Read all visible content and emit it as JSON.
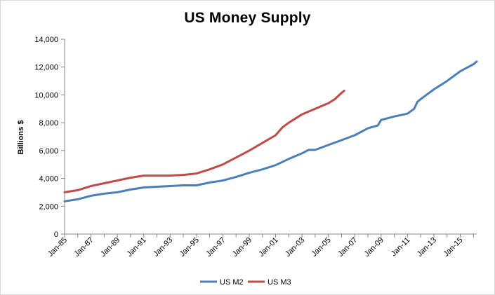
{
  "chart_data": {
    "type": "line",
    "title": "US Money Supply",
    "xlabel": "",
    "ylabel": "Billions $",
    "ylim": [
      0,
      14000
    ],
    "yticks": [
      0,
      2000,
      4000,
      6000,
      8000,
      10000,
      12000,
      14000
    ],
    "ytick_labels": [
      "0",
      "2,000",
      "4,000",
      "6,000",
      "8,000",
      "10,000",
      "12,000",
      "14,000"
    ],
    "xlim": [
      1985.0,
      2016.25
    ],
    "xticks": [
      1985,
      1987,
      1989,
      1991,
      1993,
      1995,
      1997,
      1999,
      2001,
      2003,
      2005,
      2007,
      2009,
      2011,
      2013,
      2015
    ],
    "xtick_labels": [
      "Jan-85",
      "Jan-87",
      "Jan-89",
      "Jan-91",
      "Jan-93",
      "Jan-95",
      "Jan-97",
      "Jan-99",
      "Jan-01",
      "Jan-03",
      "Jan-05",
      "Jan-07",
      "Jan-09",
      "Jan-11",
      "Jan-13",
      "Jan-15"
    ],
    "grid": false,
    "legend": "bottom",
    "series": [
      {
        "name": "US M2",
        "color": "#4a7ebb",
        "x": [
          1985.0,
          1986.0,
          1987.0,
          1988.0,
          1989.0,
          1990.0,
          1991.0,
          1992.0,
          1993.0,
          1994.0,
          1995.0,
          1996.0,
          1997.0,
          1998.0,
          1999.0,
          2000.0,
          2001.0,
          2002.0,
          2003.0,
          2003.5,
          2004.0,
          2005.0,
          2006.0,
          2007.0,
          2008.0,
          2008.75,
          2009.0,
          2010.0,
          2011.0,
          2011.5,
          2011.75,
          2012.0,
          2013.0,
          2014.0,
          2015.0,
          2016.0,
          2016.25
        ],
        "y": [
          2350,
          2500,
          2750,
          2900,
          3000,
          3200,
          3350,
          3400,
          3450,
          3500,
          3500,
          3700,
          3850,
          4100,
          4400,
          4650,
          4950,
          5400,
          5800,
          6050,
          6050,
          6400,
          6750,
          7100,
          7600,
          7800,
          8200,
          8450,
          8650,
          9000,
          9500,
          9700,
          10400,
          11000,
          11700,
          12200,
          12400
        ]
      },
      {
        "name": "US M3",
        "color": "#be4b48",
        "x": [
          1985.0,
          1986.0,
          1987.0,
          1988.0,
          1989.0,
          1990.0,
          1991.0,
          1992.0,
          1993.0,
          1994.0,
          1995.0,
          1996.0,
          1997.0,
          1998.0,
          1999.0,
          2000.0,
          2001.0,
          2001.5,
          2002.0,
          2003.0,
          2004.0,
          2005.0,
          2005.5,
          2006.0,
          2006.2
        ],
        "y": [
          3000,
          3150,
          3450,
          3650,
          3850,
          4050,
          4200,
          4200,
          4200,
          4250,
          4350,
          4650,
          5000,
          5500,
          6000,
          6550,
          7100,
          7650,
          8000,
          8600,
          9000,
          9400,
          9700,
          10150,
          10300
        ]
      }
    ]
  }
}
